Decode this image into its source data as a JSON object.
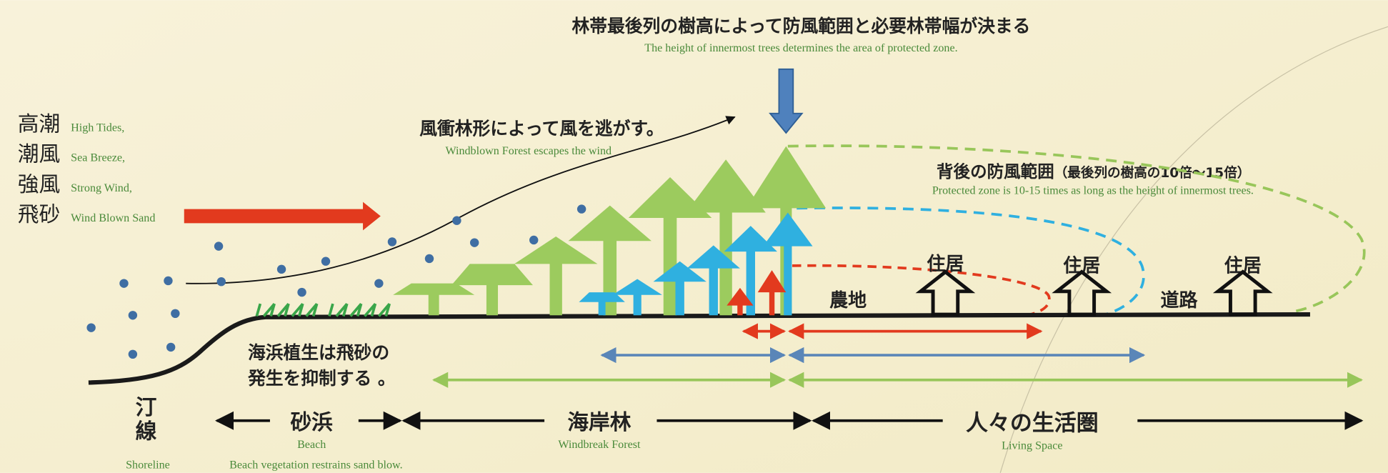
{
  "title": "林帯最後列の樹高によって防風範囲と必要林帯幅が決まる",
  "subtitle": "The height of innermost trees determines the area of protected zone.",
  "forces": [
    {
      "jp": "高潮",
      "en": "High Tides,"
    },
    {
      "jp": "潮風",
      "en": "Sea Breeze,"
    },
    {
      "jp": "強風",
      "en": "Strong Wind,"
    },
    {
      "jp": "飛砂",
      "en": "Wind Blown Sand"
    }
  ],
  "windblown": {
    "jp": "風衝林形によって風を逃がす。",
    "en": "Windblown Forest escapes the wind"
  },
  "protected": {
    "jp": "背後の防風範囲",
    "note": "（最後列の樹高の10倍〜15倍）",
    "en": "Protected zone is 10-15 times as long as the height of innermost trees."
  },
  "places": {
    "farmland": "農地",
    "road": "道路",
    "houses": [
      "住居",
      "住居",
      "住居"
    ]
  },
  "vegetation": [
    "海浜植生は飛砂の",
    "発生を抑制する 。"
  ],
  "zones": {
    "shoreline": {
      "jp": [
        "汀",
        "線"
      ],
      "en": "Shoreline"
    },
    "beach": {
      "jp": "砂浜",
      "en": "Beach",
      "note": "Beach vegetation restrains sand blow."
    },
    "forest": {
      "jp": "海岸林",
      "en": "Windbreak Forest"
    },
    "living": {
      "jp": "人々の生活圏",
      "en": "Living Space"
    }
  }
}
